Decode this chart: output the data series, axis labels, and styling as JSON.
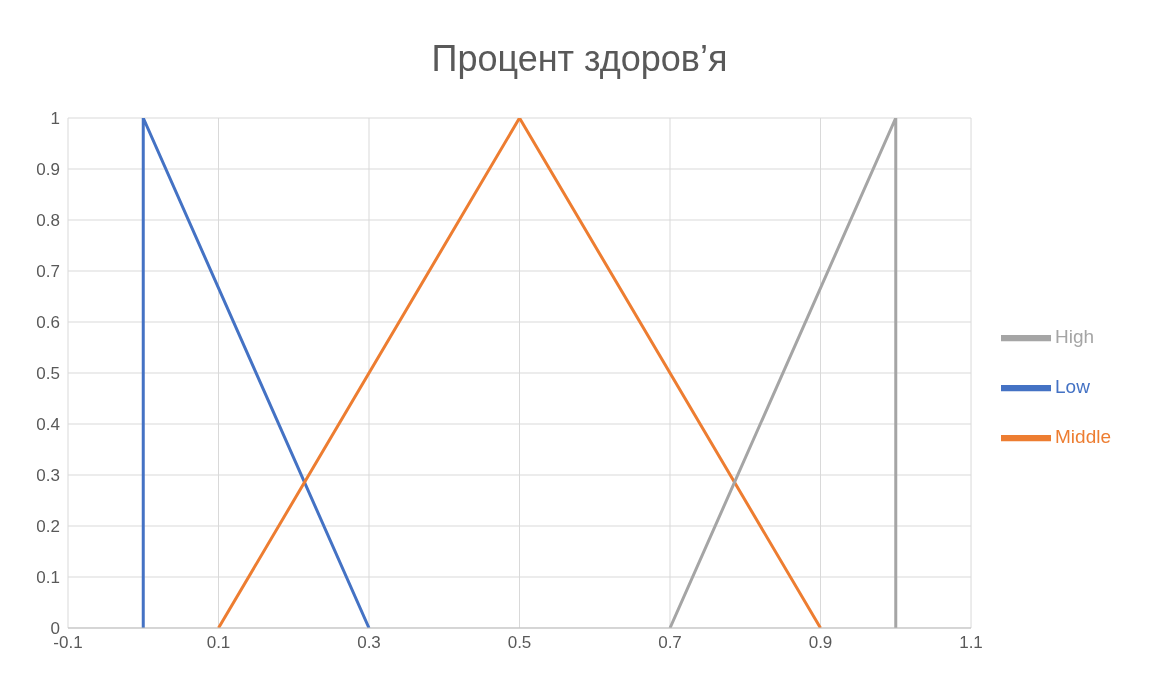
{
  "chart_data": {
    "type": "line",
    "title": "Процент здоров’я",
    "series": [
      {
        "name": "Low",
        "color": "#4472c4",
        "x": [
          0,
          0,
          0.3
        ],
        "values": [
          0,
          1,
          0
        ]
      },
      {
        "name": "Middle",
        "color": "#ed7d31",
        "x": [
          0.1,
          0.5,
          0.9
        ],
        "values": [
          0,
          1,
          0
        ]
      },
      {
        "name": "High",
        "color": "#a5a5a5",
        "x": [
          0.7,
          1,
          1
        ],
        "values": [
          0,
          1,
          0
        ]
      }
    ],
    "xlim": [
      -0.1,
      1.1
    ],
    "xticks": [
      -0.1,
      0.1,
      0.3,
      0.5,
      0.7,
      0.9,
      1.1
    ],
    "ylim": [
      0,
      1
    ],
    "yticks": [
      0,
      0.1,
      0.2,
      0.3,
      0.4,
      0.5,
      0.6,
      0.7,
      0.8,
      0.9,
      1
    ],
    "grid": true,
    "legend": "right",
    "marker": "none",
    "line_style": "solid"
  }
}
